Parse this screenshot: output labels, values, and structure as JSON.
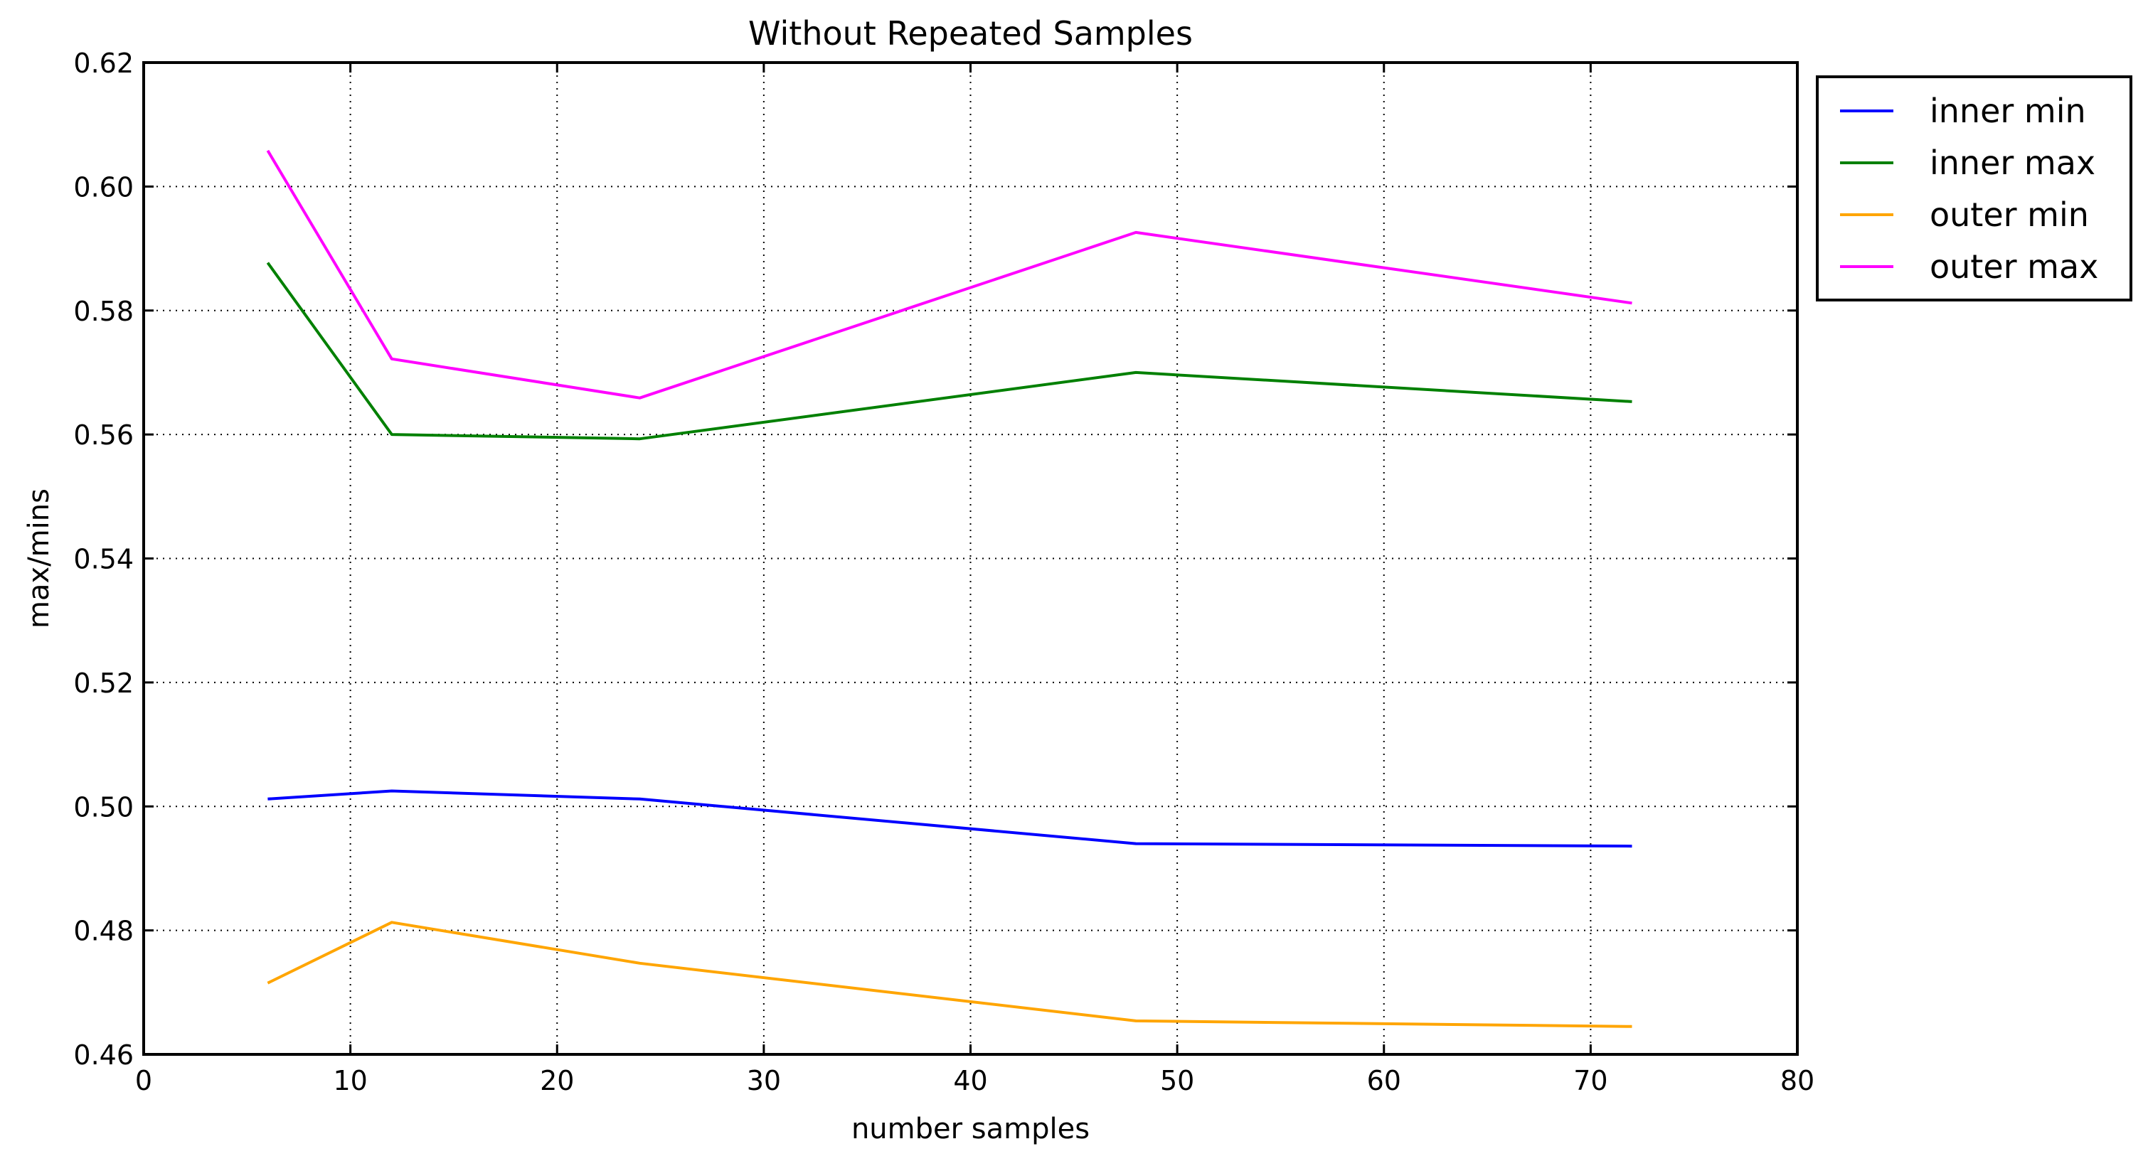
{
  "chart_data": {
    "type": "line",
    "title": "Without Repeated Samples",
    "xlabel": "number samples",
    "ylabel": "max/mins",
    "xlim": [
      0,
      80
    ],
    "ylim": [
      0.46,
      0.62
    ],
    "x_ticks": [
      "0",
      "10",
      "20",
      "30",
      "40",
      "50",
      "60",
      "70",
      "80"
    ],
    "x_tick_values": [
      0,
      10,
      20,
      30,
      40,
      50,
      60,
      70,
      80
    ],
    "y_ticks": [
      "0.46",
      "0.48",
      "0.50",
      "0.52",
      "0.54",
      "0.56",
      "0.58",
      "0.60",
      "0.62"
    ],
    "y_tick_values": [
      0.46,
      0.48,
      0.5,
      0.52,
      0.54,
      0.56,
      0.58,
      0.6,
      0.62
    ],
    "grid": true,
    "grid_style": "dotted",
    "legend_position": "outside-upper-right",
    "x": [
      6,
      12,
      24,
      48,
      72
    ],
    "series": [
      {
        "name": "inner min",
        "color": "#0000ff",
        "values": [
          0.5012,
          0.5025,
          0.5012,
          0.494,
          0.4936
        ]
      },
      {
        "name": "inner max",
        "color": "#008000",
        "values": [
          0.5877,
          0.56,
          0.5593,
          0.57,
          0.5653
        ]
      },
      {
        "name": "outer min",
        "color": "#ffa500",
        "values": [
          0.4715,
          0.4813,
          0.4747,
          0.4654,
          0.4645
        ]
      },
      {
        "name": "outer max",
        "color": "#ff00ff",
        "values": [
          0.6058,
          0.5722,
          0.5659,
          0.5926,
          0.5812
        ]
      }
    ]
  }
}
